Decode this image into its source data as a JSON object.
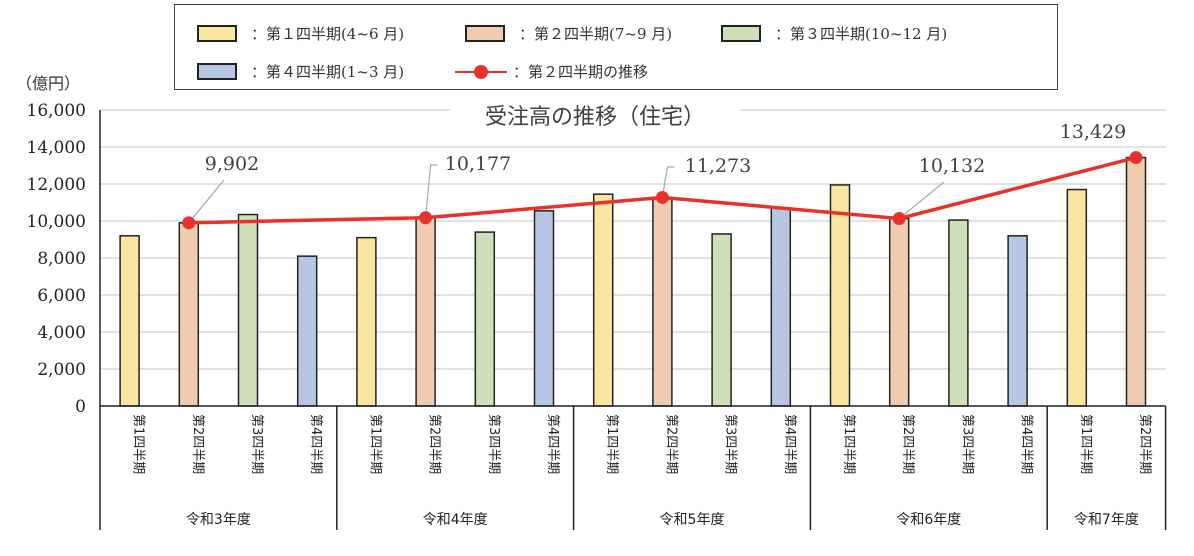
{
  "chart_data": {
    "type": "bar",
    "title": "受注高の推移（住宅）",
    "ylabel": "（億円）",
    "xlabel": "",
    "ylim": [
      0,
      16000
    ],
    "yticks": [
      0,
      2000,
      4000,
      6000,
      8000,
      10000,
      12000,
      14000,
      16000
    ],
    "ytick_labels": [
      "0",
      "2,000",
      "4,000",
      "6,000",
      "8,000",
      "10,000",
      "12,000",
      "14,000",
      "16,000"
    ],
    "grid": true,
    "legend_position": "top",
    "groups": [
      {
        "label": "令和3年度",
        "bars": [
          {
            "quarter": "第1四半期",
            "series": "q1",
            "value": 9200
          },
          {
            "quarter": "第2四半期",
            "series": "q2",
            "value": 9902
          },
          {
            "quarter": "第3四半期",
            "series": "q3",
            "value": 10350
          },
          {
            "quarter": "第4四半期",
            "series": "q4",
            "value": 8100
          }
        ]
      },
      {
        "label": "令和4年度",
        "bars": [
          {
            "quarter": "第1四半期",
            "series": "q1",
            "value": 9100
          },
          {
            "quarter": "第2四半期",
            "series": "q2",
            "value": 10177
          },
          {
            "quarter": "第3四半期",
            "series": "q3",
            "value": 9400
          },
          {
            "quarter": "第4四半期",
            "series": "q4",
            "value": 10550
          }
        ]
      },
      {
        "label": "令和5年度",
        "bars": [
          {
            "quarter": "第1四半期",
            "series": "q1",
            "value": 11450
          },
          {
            "quarter": "第2四半期",
            "series": "q2",
            "value": 11273
          },
          {
            "quarter": "第3四半期",
            "series": "q3",
            "value": 9300
          },
          {
            "quarter": "第4四半期",
            "series": "q4",
            "value": 10700
          }
        ]
      },
      {
        "label": "令和6年度",
        "bars": [
          {
            "quarter": "第1四半期",
            "series": "q1",
            "value": 11950
          },
          {
            "quarter": "第2四半期",
            "series": "q2",
            "value": 10132
          },
          {
            "quarter": "第3四半期",
            "series": "q3",
            "value": 10050
          },
          {
            "quarter": "第4四半期",
            "series": "q4",
            "value": 9200
          }
        ]
      },
      {
        "label": "令和7年度",
        "bars": [
          {
            "quarter": "第1四半期",
            "series": "q1",
            "value": 11700
          },
          {
            "quarter": "第2四半期",
            "series": "q2",
            "value": 13429
          }
        ]
      }
    ],
    "series": [
      {
        "key": "q1",
        "name": "第１四半期(4~6 月)",
        "type": "bar",
        "color": "#fae6a0"
      },
      {
        "key": "q2",
        "name": "第２四半期(7~9 月)",
        "type": "bar",
        "color": "#f0cbb0"
      },
      {
        "key": "q3",
        "name": "第３四半期(10~12 月)",
        "type": "bar",
        "color": "#cde0b8"
      },
      {
        "key": "q4",
        "name": "第４四半期(1~3 月)",
        "type": "bar",
        "color": "#b6c6e3"
      },
      {
        "key": "trend",
        "name": "第２四半期の推移",
        "type": "line",
        "color": "#e8312a",
        "values": [
          9902,
          10177,
          11273,
          10132,
          13429
        ],
        "data_labels": [
          "9,902",
          "10,177",
          "11,273",
          "10,132",
          "13,429"
        ]
      }
    ]
  },
  "legend": {
    "q1": "：第１四半期(4~6 月)",
    "q2": "：第２四半期(7~9 月)",
    "q3": "：第３四半期(10~12 月)",
    "q4": "：第４四半期(1~3 月)",
    "trend": "：第２四半期の推移"
  },
  "unit_label": "（億円）"
}
